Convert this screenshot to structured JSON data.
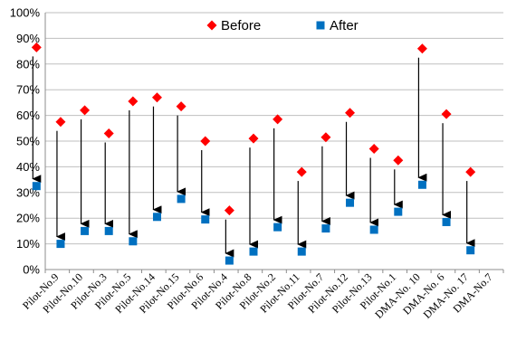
{
  "chart_data": {
    "type": "scatter",
    "title": "",
    "xlabel": "",
    "ylabel": "",
    "ylim": [
      0,
      100
    ],
    "y_ticks": [
      "0%",
      "10%",
      "20%",
      "30%",
      "40%",
      "50%",
      "60%",
      "70%",
      "80%",
      "90%",
      "100%"
    ],
    "grid": true,
    "legend_position": "top-center",
    "arrows": true,
    "categories": [
      "Pilot-No.9",
      "Pilot-No.10",
      "Pilot-No.3",
      "Pilot-No.5",
      "Pilot-No.14",
      "Pilot-No.15",
      "Pilot-No.6",
      "Pilot-No.4",
      "Pilot-No.8",
      "Pilot-No.2",
      "Pilot-No.11",
      "Pilot-No.7",
      "Pilot-No.12",
      "Pilot-No.13",
      "Pilot-No.1",
      "DMA-No. 10",
      "DMA-No. 6",
      "DMA-No. 17",
      "DMA-No.7"
    ],
    "series": [
      {
        "name": "Before",
        "color": "#ff0000",
        "marker": "diamond",
        "values": [
          86.5,
          57.5,
          62,
          53,
          65.5,
          67,
          63.5,
          50,
          23,
          51,
          58.5,
          38,
          51.5,
          61,
          47,
          42.5,
          86,
          60.5,
          38
        ]
      },
      {
        "name": "After",
        "color": "#0070c0",
        "marker": "square",
        "values": [
          32.5,
          10,
          15,
          15,
          11,
          20.5,
          27.5,
          19.5,
          3.5,
          7,
          16.5,
          7,
          16,
          26,
          15.5,
          22.5,
          33,
          18.5,
          7.5
        ]
      }
    ]
  }
}
